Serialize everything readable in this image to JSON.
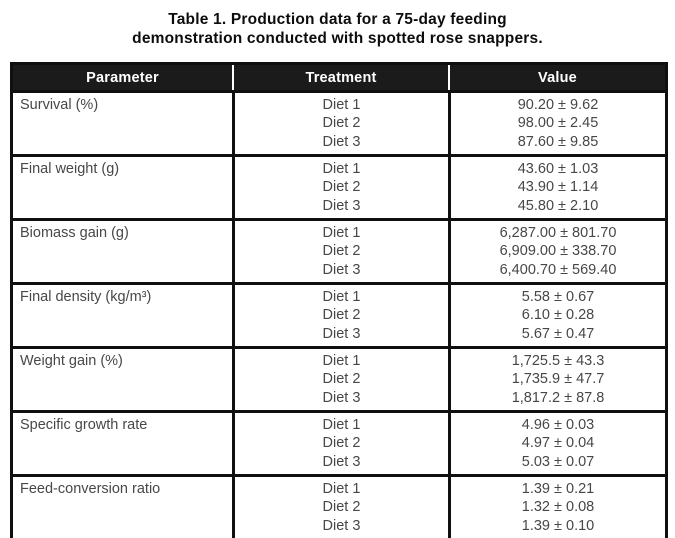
{
  "title": {
    "line1": "Table 1. Production data for a 75-day feeding",
    "line2": "demonstration conducted with spotted rose snappers."
  },
  "table": {
    "headers": [
      "Parameter",
      "Treatment",
      "Value"
    ],
    "groups": [
      {
        "parameter": "Survival (%)",
        "rows": [
          {
            "treatment": "Diet 1",
            "value": "90.20 ± 9.62"
          },
          {
            "treatment": "Diet 2",
            "value": "98.00 ± 2.45"
          },
          {
            "treatment": "Diet 3",
            "value": "87.60 ± 9.85"
          }
        ]
      },
      {
        "parameter": "Final weight (g)",
        "rows": [
          {
            "treatment": "Diet 1",
            "value": "43.60 ± 1.03"
          },
          {
            "treatment": "Diet 2",
            "value": "43.90 ± 1.14"
          },
          {
            "treatment": "Diet 3",
            "value": "45.80 ± 2.10"
          }
        ]
      },
      {
        "parameter": "Biomass gain (g)",
        "rows": [
          {
            "treatment": "Diet 1",
            "value": "6,287.00 ± 801.70"
          },
          {
            "treatment": "Diet 2",
            "value": "6,909.00 ± 338.70"
          },
          {
            "treatment": "Diet 3",
            "value": "6,400.70 ± 569.40"
          }
        ]
      },
      {
        "parameter": "Final density (kg/m³)",
        "rows": [
          {
            "treatment": "Diet 1",
            "value": "5.58 ± 0.67"
          },
          {
            "treatment": "Diet 2",
            "value": "6.10 ± 0.28"
          },
          {
            "treatment": "Diet 3",
            "value": "5.67 ± 0.47"
          }
        ]
      },
      {
        "parameter": "Weight gain (%)",
        "rows": [
          {
            "treatment": "Diet 1",
            "value": "1,725.5 ± 43.3"
          },
          {
            "treatment": "Diet 2",
            "value": "1,735.9 ± 47.7"
          },
          {
            "treatment": "Diet 3",
            "value": "1,817.2 ± 87.8"
          }
        ]
      },
      {
        "parameter": "Specific growth rate",
        "rows": [
          {
            "treatment": "Diet 1",
            "value": "4.96 ± 0.03"
          },
          {
            "treatment": "Diet 2",
            "value": "4.97 ± 0.04"
          },
          {
            "treatment": "Diet 3",
            "value": "5.03 ± 0.07"
          }
        ]
      },
      {
        "parameter": "Feed-conversion ratio",
        "rows": [
          {
            "treatment": "Diet 1",
            "value": "1.39 ± 0.21"
          },
          {
            "treatment": "Diet 2",
            "value": "1.32 ± 0.08"
          },
          {
            "treatment": "Diet 3",
            "value": "1.39 ± 0.10"
          }
        ]
      }
    ]
  },
  "colors": {
    "page_bg": "#ffffff",
    "header_bg": "#1b1b1b",
    "header_text": "#ffffff",
    "border": "#101010",
    "body_text": "#474747",
    "title_text": "#0d0d0d"
  }
}
